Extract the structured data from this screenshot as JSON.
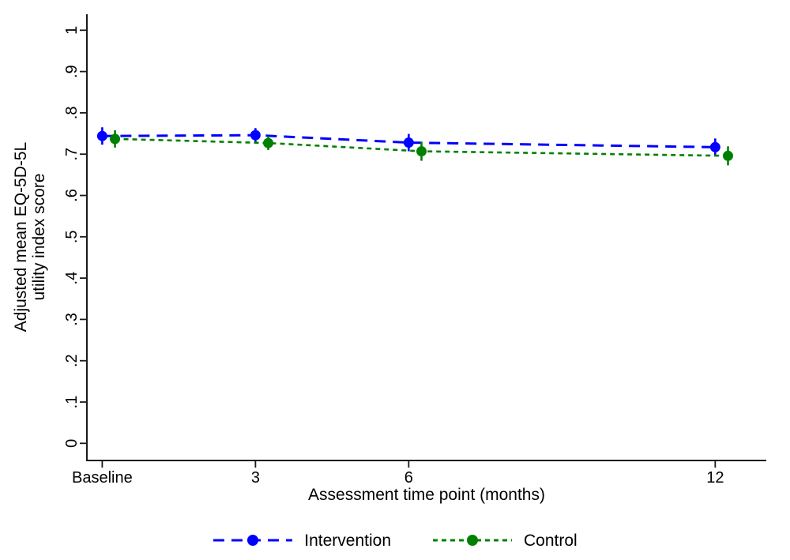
{
  "chart_data": {
    "type": "line",
    "title": "",
    "xlabel": "Assessment time point (months)",
    "ylabel": "Adjusted mean EQ-5D-5L utility index score",
    "ylabel_line1": "Adjusted mean EQ-5D-5L",
    "ylabel_line2": "utility index score",
    "x_categories": [
      "Baseline",
      "3",
      "6",
      "12"
    ],
    "x_months": [
      0,
      3,
      6,
      12
    ],
    "xlim_months": [
      -0.3,
      13
    ],
    "ylim": [
      0,
      1
    ],
    "yticks": [
      0,
      0.1,
      0.2,
      0.3,
      0.4,
      0.5,
      0.6,
      0.7,
      0.8,
      0.9,
      1
    ],
    "ytick_labels": [
      "0",
      ".1",
      ".2",
      ".3",
      ".4",
      ".5",
      ".6",
      ".7",
      ".8",
      ".9",
      "1"
    ],
    "grid": false,
    "legend_position": "bottom-center",
    "marker": "circle",
    "series": [
      {
        "name": "Intervention",
        "color": "#0000ff",
        "line_style": "long-dash",
        "dash_array": "14 9",
        "x_offset_months": 0,
        "values": [
          0.744,
          0.746,
          0.728,
          0.717
        ],
        "ci_low": [
          0.723,
          0.729,
          0.707,
          0.696
        ],
        "ci_high": [
          0.765,
          0.763,
          0.749,
          0.738
        ]
      },
      {
        "name": "Control",
        "color": "#008000",
        "line_style": "short-dash",
        "dash_array": "6 5",
        "x_offset_months": 0.25,
        "values": [
          0.737,
          0.727,
          0.707,
          0.696
        ],
        "ci_low": [
          0.716,
          0.71,
          0.684,
          0.673
        ],
        "ci_high": [
          0.758,
          0.744,
          0.73,
          0.719
        ]
      }
    ]
  }
}
